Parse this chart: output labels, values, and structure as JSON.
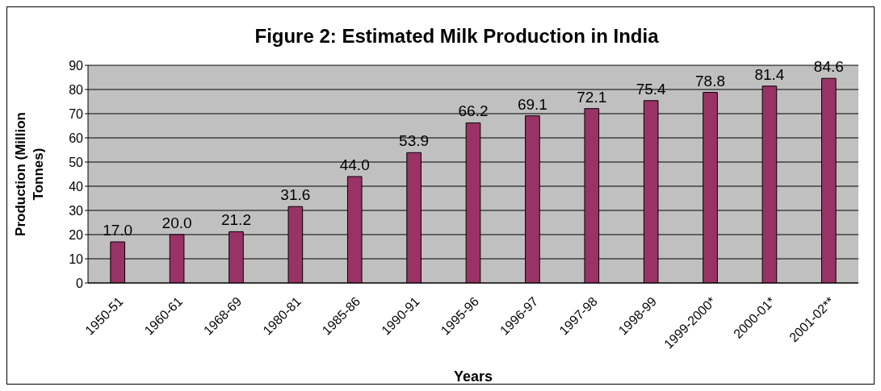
{
  "chart_data": {
    "type": "bar",
    "title": "Figure 2: Estimated Milk Production in India",
    "xlabel": "Years",
    "ylabel": "Production (Million Tonnes)",
    "categories": [
      "1950-51",
      "1960-61",
      "1968-69",
      "1980-81",
      "1985-86",
      "1990-91",
      "1995-96",
      "1996-97",
      "1997-98",
      "1998-99",
      "1999-2000*",
      "2000-01*",
      "2001-02**"
    ],
    "values": [
      17.0,
      20.0,
      21.2,
      31.6,
      44.0,
      53.9,
      66.2,
      69.1,
      72.1,
      75.4,
      78.8,
      81.4,
      84.6
    ],
    "value_labels": [
      "17.0",
      "20.0",
      "21.2",
      "31.6",
      "44.0",
      "53.9",
      "66.2",
      "69.1",
      "72.1",
      "75.4",
      "78.8",
      "81.4",
      "84.6"
    ],
    "color": "#993366",
    "ylim": [
      0,
      90
    ],
    "yticks": [
      0,
      10,
      20,
      30,
      40,
      50,
      60,
      70,
      80,
      90
    ],
    "grid": "y"
  }
}
